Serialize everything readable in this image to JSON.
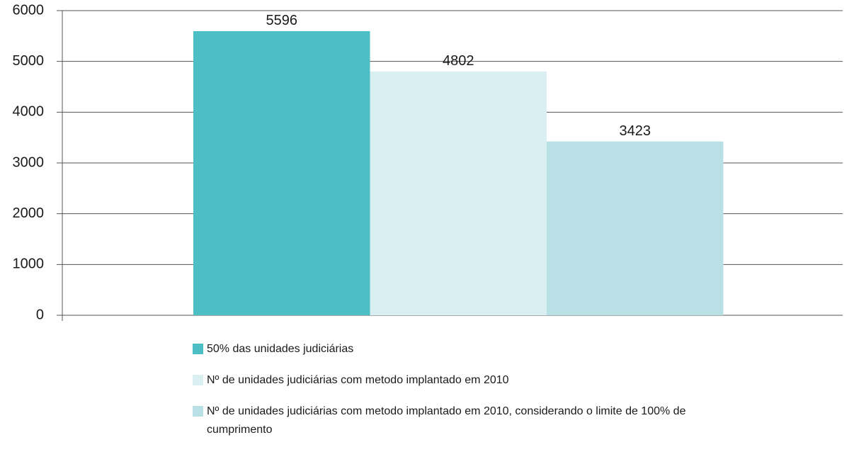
{
  "chart_data": {
    "type": "bar",
    "categories": [
      null
    ],
    "series": [
      {
        "name": "50% das  unidades judiciárias",
        "color": "#4ebec5",
        "values": [
          5596
        ]
      },
      {
        "name": "Nº de unidades judiciárias com metodo implantado em 2010",
        "color": "#daeff2",
        "values": [
          4802
        ]
      },
      {
        "name": "Nº de unidades judiciárias com metodo implantado em 2010, considerando o limite de 100% de cumprimento",
        "color": "#b8e0e5",
        "values": [
          3423
        ]
      }
    ],
    "ylim": [
      0,
      6000
    ],
    "yticks": [
      0,
      1000,
      2000,
      3000,
      4000,
      5000,
      6000
    ],
    "grid": true
  }
}
